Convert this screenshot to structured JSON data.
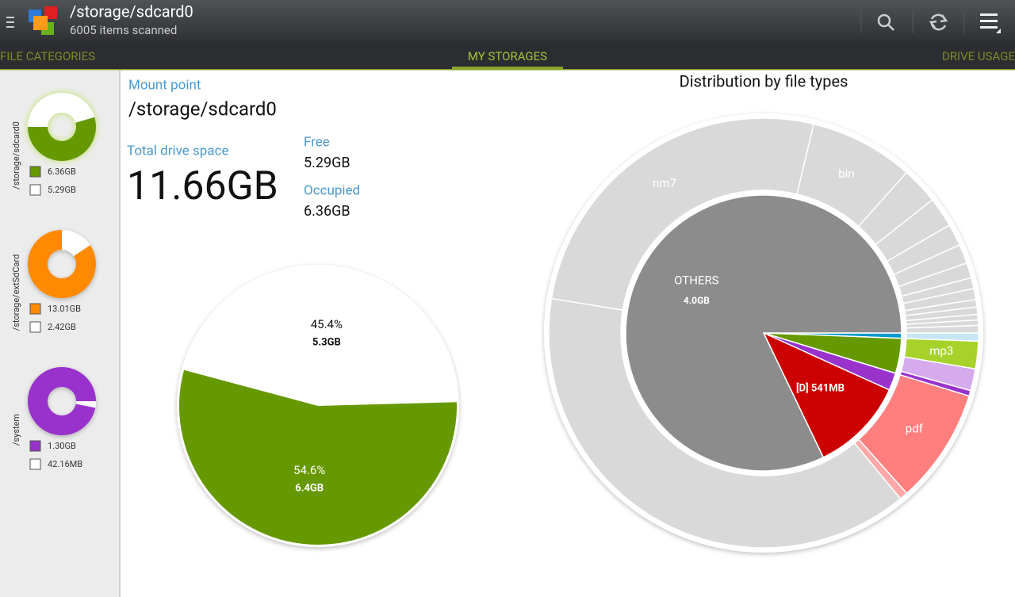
{
  "header": {
    "title": "/storage/sdcard0",
    "subtitle": "6005 items scanned"
  },
  "tabs": [
    "FILE CATEGORIES",
    "MY STORAGES",
    "DRIVE USAGE"
  ],
  "active_tab": 1,
  "storages": [
    {
      "path": "/storage/sdcard0",
      "color": "#669900",
      "values": [
        6.36,
        5.29
      ],
      "value_labels": [
        "6.36GB",
        "5.29GB"
      ]
    },
    {
      "path": "/storage/extSdCard",
      "color": "#ff8a00",
      "values": [
        13.01,
        2.42
      ],
      "value_labels": [
        "13.01GB",
        "2.42GB"
      ]
    },
    {
      "path": "/system",
      "color": "#9933cc",
      "values": [
        1.3,
        0.04216
      ],
      "value_labels": [
        "1.30GB",
        "42.16MB"
      ]
    }
  ],
  "details": {
    "mount_point_label": "Mount point",
    "mount_point": "/storage/sdcard0",
    "total_label": "Total drive space",
    "total": "11.66GB",
    "free_label": "Free",
    "free": "5.29GB",
    "occupied_label": "Occupied",
    "occupied": "6.36GB"
  },
  "usage_pie": {
    "type": "pie",
    "values": [
      45.4,
      54.6
    ],
    "value_labels": [
      "45.4%",
      "54.6%"
    ],
    "sizes": [
      "5.3GB",
      "6.4GB"
    ],
    "colors": [
      "#ffffff",
      "#669900"
    ]
  },
  "distribution": {
    "type": "sunburst",
    "title": "Distribution by file types",
    "inner": [
      {
        "value": 0.03,
        "color": "#0099cc"
      },
      {
        "value": 0.2,
        "color": "#669900"
      },
      {
        "value": 0.1,
        "color": "#9933cc"
      },
      {
        "name": "[D] 541MB",
        "value": 0.541,
        "color": "#cc0000"
      },
      {
        "name": "OTHERS",
        "value": 4.0,
        "value_label": "4.0GB",
        "color": "#8c8c8c"
      }
    ],
    "outer": [
      {
        "value": 0.03,
        "color": "#c6e6f6"
      },
      {
        "name": "mp3",
        "value": 0.1,
        "color": "#a6d22a"
      },
      {
        "value": 0.08,
        "color": "#d5abed"
      },
      {
        "value": 0.02,
        "color": "#9933cc"
      },
      {
        "name": "pdf",
        "value": 0.42,
        "color": "#ff7f7f"
      },
      {
        "value": 0.03,
        "color": "#ffa8a8"
      },
      {
        "value": 1.87,
        "color": "#d9d9d9"
      },
      {
        "name": "nm7",
        "value": 1.27,
        "color": "#d9d9d9"
      },
      {
        "name": "bin",
        "value": 0.38,
        "color": "#d9d9d9"
      },
      {
        "value": 0.135,
        "color": "#d9d9d9"
      },
      {
        "value": 0.11,
        "color": "#d9d9d9"
      },
      {
        "value": 0.08,
        "color": "#d9d9d9"
      },
      {
        "value": 0.07,
        "color": "#d9d9d9"
      },
      {
        "value": 0.055,
        "color": "#d9d9d9"
      },
      {
        "value": 0.04,
        "color": "#d9d9d9"
      },
      {
        "value": 0.04,
        "color": "#d9d9d9"
      },
      {
        "value": 0.027,
        "color": "#d9d9d9"
      },
      {
        "value": 0.027,
        "color": "#d9d9d9"
      },
      {
        "value": 0.02,
        "color": "#d9d9d9"
      },
      {
        "value": 0.02,
        "color": "#d9d9d9"
      },
      {
        "value": 0.027,
        "color": "#d9d9d9"
      }
    ]
  }
}
